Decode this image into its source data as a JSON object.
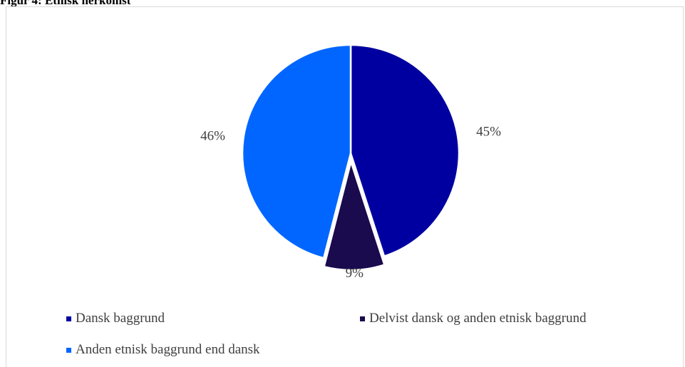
{
  "figure": {
    "title": "Figur 4: Etnisk herkomst"
  },
  "chart_data": {
    "type": "pie",
    "title": "Figur 4: Etnisk herkomst",
    "categories": [
      "Dansk baggrund",
      "Delvist dansk og anden etnisk baggrund",
      "Anden etnisk baggrund end dansk"
    ],
    "values": [
      45,
      9,
      46
    ],
    "labels": [
      "45%",
      "9%",
      "46%"
    ],
    "colors": [
      "#0000a0",
      "#1a0a4e",
      "#0066ff"
    ],
    "legend_position": "bottom"
  }
}
